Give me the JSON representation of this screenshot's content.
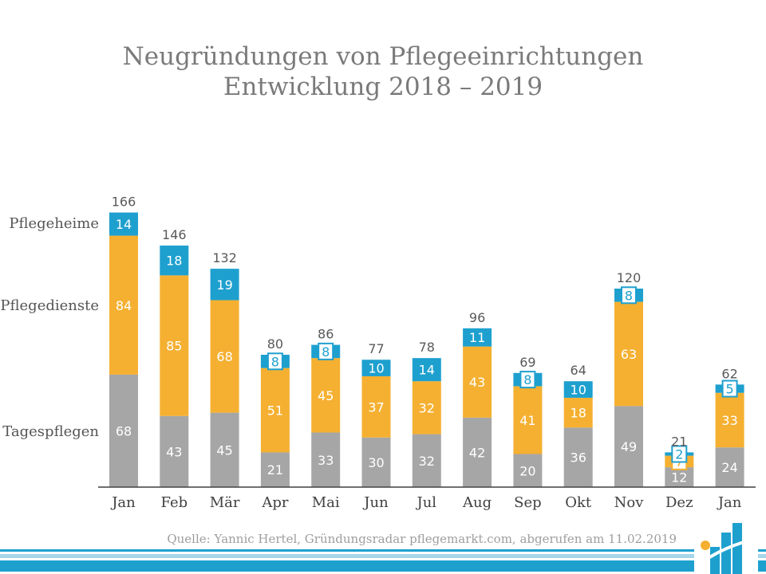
{
  "title_line1": "Neugründungen von Pflegeeinrichtungen",
  "title_line2": "Entwicklung 2018 – 2019",
  "series_labels": {
    "pflegeheime": "Pflegeheime",
    "pflegedienste": "Pflegedienste",
    "tagespflegen": "Tagespflegen"
  },
  "source": "Quelle: Yannic Hertel, Gründungsradar pflegemarkt.com, abgerufen am 11.02.2019",
  "colors": {
    "tagespflegen": "#a6a6a6",
    "pflegedienste": "#f5b031",
    "pflegeheime": "#1ea0cf",
    "axis": "#404040",
    "total_text": "#595959",
    "footer": "#1ea0cf"
  },
  "chart_data": {
    "type": "bar",
    "stacked": true,
    "categories": [
      "Jan",
      "Feb",
      "Mär",
      "Apr",
      "Mai",
      "Jun",
      "Jul",
      "Aug",
      "Sep",
      "Okt",
      "Nov",
      "Dez",
      "Jan"
    ],
    "series": [
      {
        "name": "Tagespflegen",
        "values": [
          68,
          43,
          45,
          21,
          33,
          30,
          32,
          42,
          20,
          36,
          49,
          12,
          24
        ]
      },
      {
        "name": "Pflegedienste",
        "values": [
          84,
          85,
          68,
          51,
          45,
          37,
          32,
          43,
          41,
          18,
          63,
          7,
          33
        ]
      },
      {
        "name": "Pflegeheime",
        "values": [
          14,
          18,
          19,
          8,
          8,
          10,
          14,
          11,
          8,
          10,
          8,
          2,
          5
        ]
      }
    ],
    "totals": [
      166,
      146,
      132,
      80,
      86,
      77,
      78,
      96,
      69,
      64,
      120,
      21,
      62
    ],
    "ylim": [
      0,
      166
    ],
    "grid": false,
    "legend": "left"
  }
}
